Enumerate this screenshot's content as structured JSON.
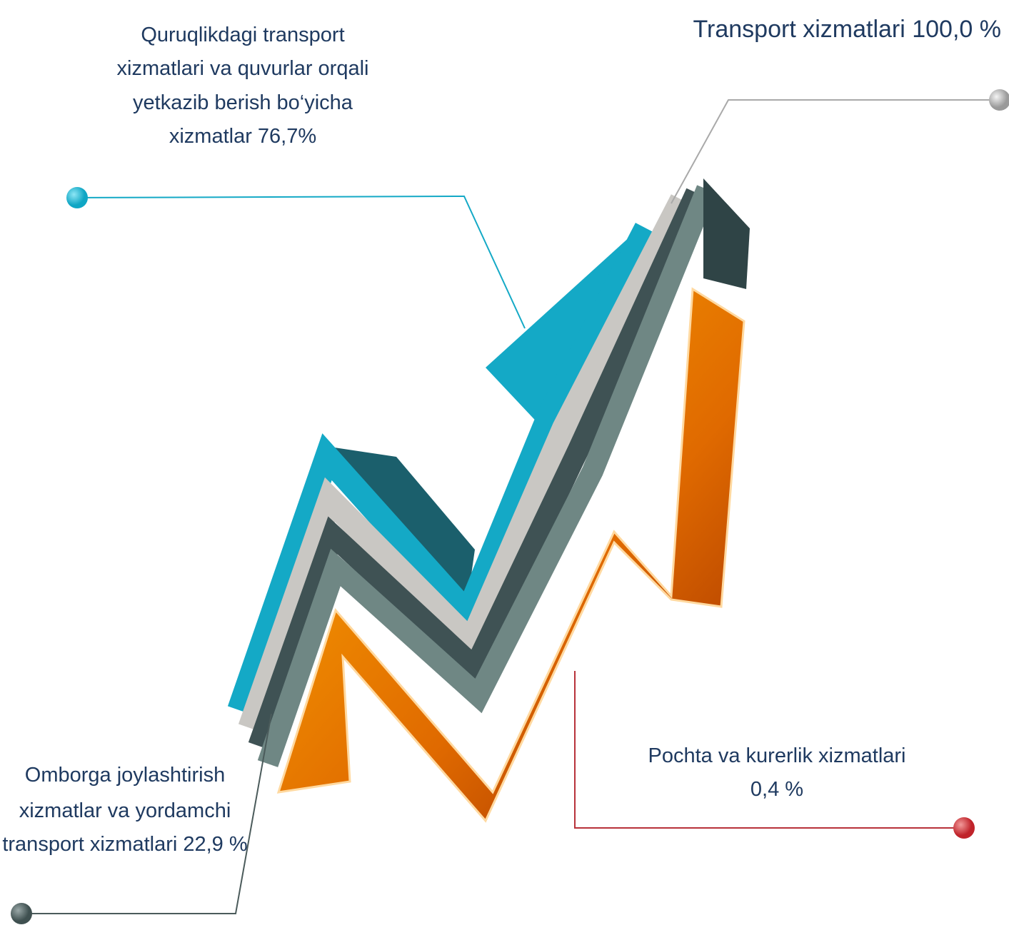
{
  "labels": [
    {
      "lines": [
        "Quruqlikdagi transport",
        "xizmatlari va quvurlar orqali",
        "yetkazib berish bo‘yicha",
        "xizmatlar 76,7%"
      ]
    },
    {
      "lines": [
        "Transport xizmatlari  100,0 %"
      ]
    },
    {
      "lines": [
        "Pochta va kurerlik xizmatlari",
        "0,4 %"
      ]
    },
    {
      "lines": [
        "Omborga joylashtirish",
        "xizmatlar va yordamchi",
        "transport xizmatlari  22,9 %"
      ]
    }
  ]
}
